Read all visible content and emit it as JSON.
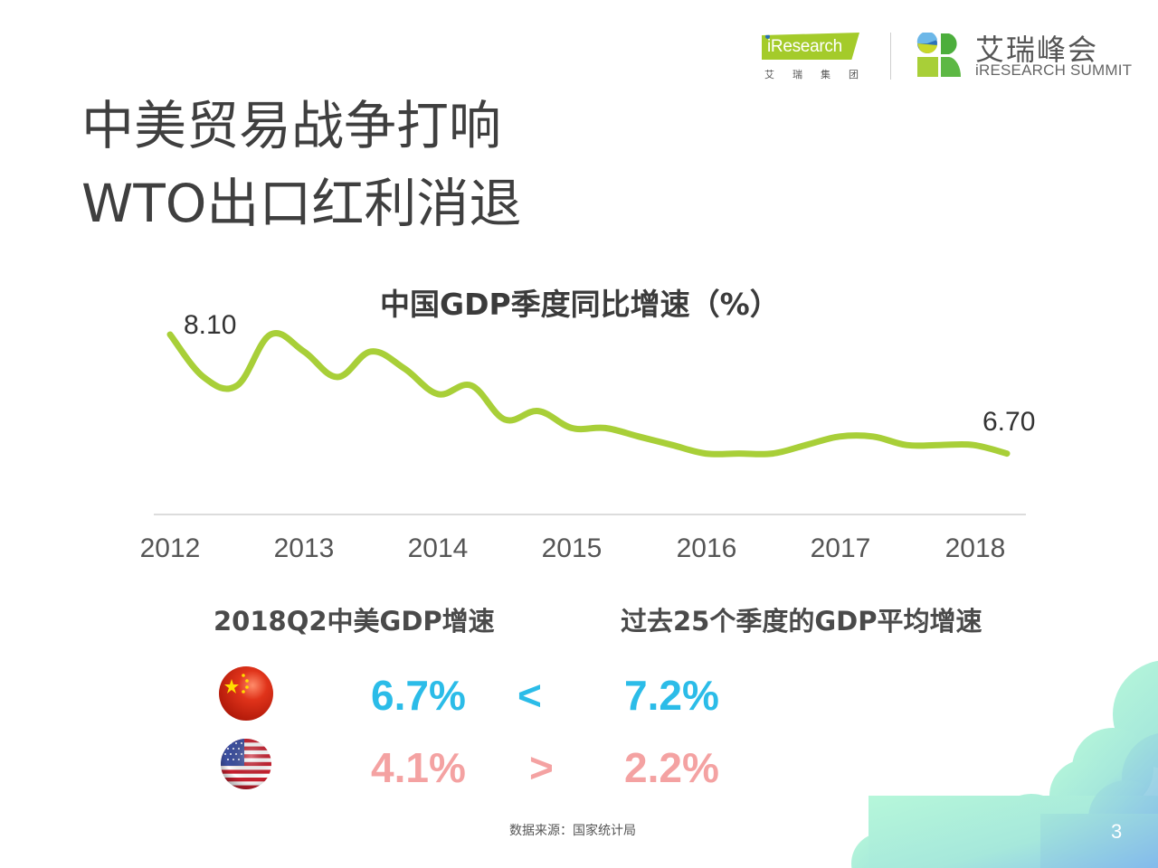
{
  "header": {
    "brand_logo": {
      "badge_text": "iResearch",
      "sub_text": "艾瑞集团"
    },
    "summit_logo": {
      "cn": "艾瑞峰会",
      "en": "iRESEARCH SUMMIT"
    }
  },
  "slide": {
    "title_line1": "中美贸易战争打响",
    "title_line2": "WTO出口红利消退",
    "page_number": "3"
  },
  "chart_data": {
    "type": "line",
    "title": "中国GDP季度同比增速（%）",
    "xlabel": "",
    "ylabel": "",
    "x_ticks": [
      "2012",
      "2013",
      "2014",
      "2015",
      "2016",
      "2017",
      "2018"
    ],
    "x": [
      "2012Q1",
      "2012Q2",
      "2012Q3",
      "2012Q4",
      "2013Q1",
      "2013Q2",
      "2013Q3",
      "2013Q4",
      "2014Q1",
      "2014Q2",
      "2014Q3",
      "2014Q4",
      "2015Q1",
      "2015Q2",
      "2015Q3",
      "2015Q4",
      "2016Q1",
      "2016Q2",
      "2016Q3",
      "2016Q4",
      "2017Q1",
      "2017Q2",
      "2017Q3",
      "2017Q4",
      "2018Q1",
      "2018Q2"
    ],
    "values": [
      8.1,
      7.6,
      7.5,
      8.1,
      7.9,
      7.6,
      7.9,
      7.7,
      7.4,
      7.5,
      7.1,
      7.2,
      7.0,
      7.0,
      6.9,
      6.8,
      6.7,
      6.7,
      6.7,
      6.8,
      6.9,
      6.9,
      6.8,
      6.8,
      6.8,
      6.7
    ],
    "annotations": [
      {
        "label": "8.10",
        "at": "2012Q1"
      },
      {
        "label": "6.70",
        "at": "2018Q2"
      }
    ],
    "line_color": "#a8cf38",
    "grid": false,
    "y_axis_visible": false,
    "legend": null
  },
  "comparison": {
    "left_header": "2018Q2中美GDP增速",
    "right_header": "过去25个季度的GDP平均增速",
    "rows": [
      {
        "country": "China",
        "flag_icon": "china-flag-icon",
        "current": "6.7%",
        "operator": "<",
        "average": "7.2%",
        "color": "#2bbce8"
      },
      {
        "country": "USA",
        "flag_icon": "usa-flag-icon",
        "current": "4.1%",
        "operator": ">",
        "average": "2.2%",
        "color": "#f4a2a2"
      }
    ]
  },
  "footer": {
    "source": "数据来源：国家统计局"
  }
}
